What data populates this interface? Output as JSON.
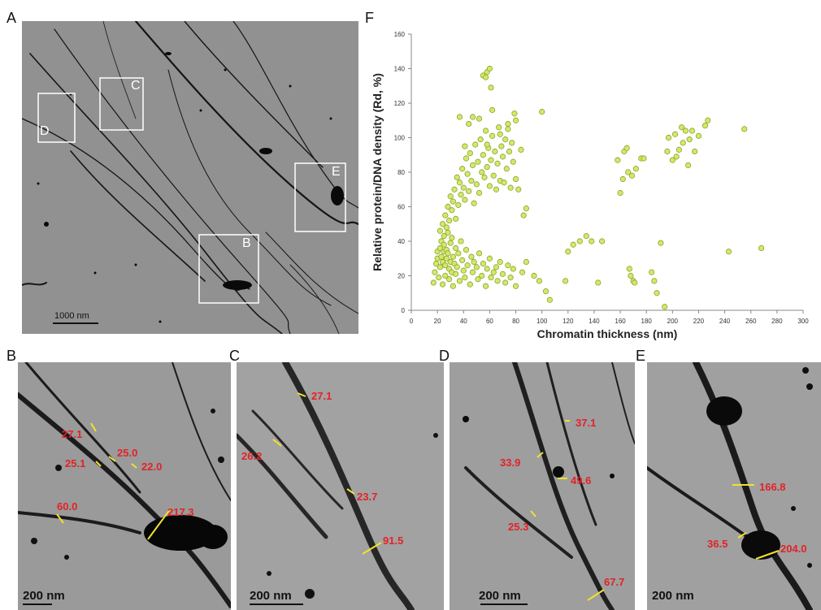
{
  "figure": {
    "panel_labels": {
      "a": "A",
      "b": "B",
      "c": "C",
      "d": "D",
      "e": "E",
      "f": "F"
    },
    "panel_a": {
      "scale_bar": "1000 nm",
      "boxes": [
        {
          "label": "C"
        },
        {
          "label": "D"
        },
        {
          "label": "E"
        },
        {
          "label": "B"
        }
      ]
    },
    "panel_b": {
      "scale_bar": "200 nm",
      "measurements": [
        "27.1",
        "25.0",
        "25.1",
        "22.0",
        "60.0",
        "217.3"
      ]
    },
    "panel_c": {
      "scale_bar": "200 nm",
      "measurements": [
        "27.1",
        "26.2",
        "23.7",
        "91.5"
      ]
    },
    "panel_d": {
      "scale_bar": "200 nm",
      "measurements": [
        "37.1",
        "33.9",
        "49.6",
        "25.3",
        "67.7"
      ]
    },
    "panel_e": {
      "scale_bar": "200 nm",
      "measurements": [
        "166.8",
        "36.5",
        "204.0"
      ]
    }
  },
  "colors": {
    "measurement": "#e32227",
    "measure_bar": "#f2e22a",
    "point_fill": "#d3e86a",
    "point_stroke": "#8aa52c"
  },
  "chart_data": {
    "type": "scatter",
    "title": "",
    "xlabel": "Chromatin thickness (nm)",
    "ylabel": "Relative protein/DNA density (Rd, %)",
    "xlim": [
      0,
      300
    ],
    "ylim": [
      0,
      160
    ],
    "xticks": [
      "0",
      "20",
      "40",
      "60",
      "80",
      "100",
      "120",
      "140",
      "160",
      "180",
      "200",
      "220",
      "240",
      "260",
      "280",
      "300"
    ],
    "yticks": [
      "0",
      "20",
      "40",
      "60",
      "80",
      "100",
      "120",
      "140",
      "160"
    ],
    "grid": false,
    "series": [
      {
        "points": [
          [
            17,
            16
          ],
          [
            18,
            22
          ],
          [
            19,
            27
          ],
          [
            20,
            34
          ],
          [
            20,
            30
          ],
          [
            21,
            19
          ],
          [
            22,
            25
          ],
          [
            22,
            36
          ],
          [
            23,
            40
          ],
          [
            23,
            31
          ],
          [
            24,
            15
          ],
          [
            24,
            28
          ],
          [
            25,
            34
          ],
          [
            25,
            38
          ],
          [
            25,
            43
          ],
          [
            26,
            20
          ],
          [
            26,
            26
          ],
          [
            27,
            30
          ],
          [
            27,
            35
          ],
          [
            28,
            45
          ],
          [
            28,
            33
          ],
          [
            29,
            18
          ],
          [
            29,
            24
          ],
          [
            30,
            39
          ],
          [
            30,
            28
          ],
          [
            31,
            22
          ],
          [
            31,
            42
          ],
          [
            32,
            14
          ],
          [
            32,
            31
          ],
          [
            33,
            27
          ],
          [
            34,
            36
          ],
          [
            34,
            21
          ],
          [
            35,
            25
          ],
          [
            36,
            33
          ],
          [
            37,
            17
          ],
          [
            38,
            40
          ],
          [
            39,
            29
          ],
          [
            40,
            23
          ],
          [
            41,
            19
          ],
          [
            42,
            35
          ],
          [
            43,
            26
          ],
          [
            45,
            15
          ],
          [
            46,
            31
          ],
          [
            47,
            22
          ],
          [
            48,
            28
          ],
          [
            50,
            25
          ],
          [
            51,
            18
          ],
          [
            52,
            33
          ],
          [
            54,
            20
          ],
          [
            55,
            27
          ],
          [
            57,
            14
          ],
          [
            58,
            24
          ],
          [
            60,
            30
          ],
          [
            61,
            19
          ],
          [
            63,
            22
          ],
          [
            65,
            25
          ],
          [
            66,
            17
          ],
          [
            68,
            28
          ],
          [
            70,
            21
          ],
          [
            72,
            16
          ],
          [
            74,
            26
          ],
          [
            76,
            19
          ],
          [
            78,
            24
          ],
          [
            80,
            14
          ],
          [
            85,
            22
          ],
          [
            88,
            28
          ],
          [
            94,
            20
          ],
          [
            98,
            17
          ],
          [
            22,
            46
          ],
          [
            24,
            50
          ],
          [
            26,
            55
          ],
          [
            27,
            48
          ],
          [
            28,
            60
          ],
          [
            29,
            52
          ],
          [
            30,
            66
          ],
          [
            31,
            58
          ],
          [
            32,
            63
          ],
          [
            33,
            70
          ],
          [
            34,
            53
          ],
          [
            35,
            77
          ],
          [
            36,
            61
          ],
          [
            37,
            74
          ],
          [
            38,
            67
          ],
          [
            39,
            82
          ],
          [
            40,
            71
          ],
          [
            41,
            64
          ],
          [
            42,
            88
          ],
          [
            43,
            79
          ],
          [
            44,
            69
          ],
          [
            45,
            91
          ],
          [
            46,
            75
          ],
          [
            47,
            84
          ],
          [
            48,
            62
          ],
          [
            49,
            96
          ],
          [
            50,
            73
          ],
          [
            51,
            86
          ],
          [
            52,
            68
          ],
          [
            53,
            99
          ],
          [
            54,
            80
          ],
          [
            55,
            90
          ],
          [
            56,
            77
          ],
          [
            57,
            104
          ],
          [
            58,
            83
          ],
          [
            59,
            94
          ],
          [
            60,
            72
          ],
          [
            61,
            87
          ],
          [
            62,
            101
          ],
          [
            63,
            78
          ],
          [
            64,
            92
          ],
          [
            65,
            70
          ],
          [
            66,
            85
          ],
          [
            67,
            106
          ],
          [
            68,
            75
          ],
          [
            69,
            95
          ],
          [
            70,
            89
          ],
          [
            71,
            74
          ],
          [
            72,
            99
          ],
          [
            73,
            82
          ],
          [
            74,
            108
          ],
          [
            75,
            92
          ],
          [
            76,
            71
          ],
          [
            77,
            97
          ],
          [
            78,
            86
          ],
          [
            79,
            114
          ],
          [
            80,
            76
          ],
          [
            82,
            70
          ],
          [
            84,
            93
          ],
          [
            86,
            55
          ],
          [
            88,
            59
          ],
          [
            44,
            108
          ],
          [
            47,
            112
          ],
          [
            52,
            111
          ],
          [
            41,
            95
          ],
          [
            37,
            112
          ],
          [
            62,
            116
          ],
          [
            68,
            102
          ],
          [
            74,
            105
          ],
          [
            80,
            110
          ],
          [
            58,
            96
          ],
          [
            100,
            115
          ],
          [
            55,
            136
          ],
          [
            57,
            135
          ],
          [
            58,
            138
          ],
          [
            60,
            140
          ],
          [
            61,
            129
          ],
          [
            103,
            11
          ],
          [
            106,
            6
          ],
          [
            118,
            17
          ],
          [
            120,
            34
          ],
          [
            124,
            38
          ],
          [
            129,
            40
          ],
          [
            134,
            43
          ],
          [
            138,
            40
          ],
          [
            143,
            16
          ],
          [
            146,
            40
          ],
          [
            158,
            87
          ],
          [
            160,
            68
          ],
          [
            162,
            76
          ],
          [
            163,
            92
          ],
          [
            165,
            94
          ],
          [
            166,
            80
          ],
          [
            167,
            24
          ],
          [
            168,
            20
          ],
          [
            169,
            78
          ],
          [
            170,
            17
          ],
          [
            171,
            16
          ],
          [
            172,
            82
          ],
          [
            176,
            88
          ],
          [
            178,
            88
          ],
          [
            184,
            22
          ],
          [
            186,
            17
          ],
          [
            188,
            10
          ],
          [
            191,
            39
          ],
          [
            194,
            2
          ],
          [
            196,
            92
          ],
          [
            197,
            100
          ],
          [
            200,
            87
          ],
          [
            202,
            102
          ],
          [
            203,
            89
          ],
          [
            205,
            93
          ],
          [
            207,
            106
          ],
          [
            208,
            97
          ],
          [
            210,
            104
          ],
          [
            212,
            84
          ],
          [
            213,
            99
          ],
          [
            215,
            104
          ],
          [
            217,
            92
          ],
          [
            220,
            101
          ],
          [
            225,
            107
          ],
          [
            227,
            110
          ],
          [
            243,
            34
          ],
          [
            255,
            105
          ],
          [
            268,
            36
          ]
        ]
      }
    ]
  }
}
